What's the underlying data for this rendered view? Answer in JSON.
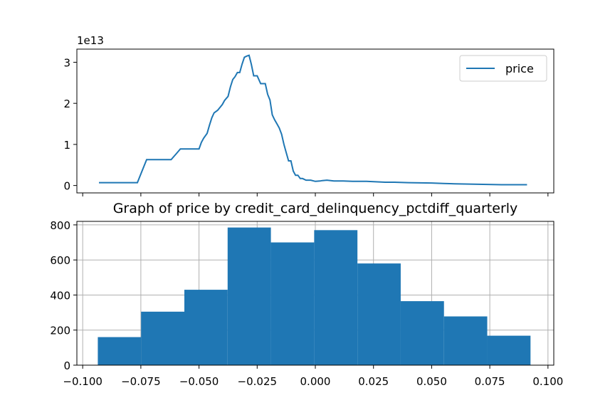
{
  "chart_data": [
    {
      "type": "line",
      "title": "",
      "xlabel": "",
      "ylabel": "",
      "offset_label": "1e13",
      "xlim": [
        -0.1025,
        0.1025
      ],
      "ylim": [
        -0.18,
        3.32
      ],
      "y_unit": "1e13",
      "x_ticks": [
        -0.1,
        -0.075,
        -0.05,
        -0.025,
        0.0,
        0.025,
        0.05,
        0.075,
        0.1
      ],
      "x_tick_labels_shown": false,
      "y_ticks": [
        0,
        1,
        2,
        3
      ],
      "y_tick_labels": [
        "0",
        "1",
        "2",
        "3"
      ],
      "grid": false,
      "legend": {
        "position": "upper right",
        "entries": [
          "price"
        ]
      },
      "series": [
        {
          "name": "price",
          "color": "#1f77b4",
          "x": [
            -0.093,
            -0.09,
            -0.085,
            -0.08,
            -0.0765,
            -0.0745,
            -0.0725,
            -0.0705,
            -0.067,
            -0.062,
            -0.0595,
            -0.058,
            -0.056,
            -0.053,
            -0.05,
            -0.049,
            -0.048,
            -0.0465,
            -0.0455,
            -0.0445,
            -0.0435,
            -0.042,
            -0.041,
            -0.04,
            -0.039,
            -0.0375,
            -0.0365,
            -0.0355,
            -0.0345,
            -0.0335,
            -0.0325,
            -0.0315,
            -0.0305,
            -0.0295,
            -0.0285,
            -0.0275,
            -0.0265,
            -0.026,
            -0.025,
            -0.0235,
            -0.0225,
            -0.0215,
            -0.0205,
            -0.0195,
            -0.0185,
            -0.0175,
            -0.0165,
            -0.0155,
            -0.0145,
            -0.0135,
            -0.0125,
            -0.0115,
            -0.0105,
            -0.0095,
            -0.0085,
            -0.0075,
            -0.0065,
            -0.0055,
            -0.004,
            -0.002,
            0.0,
            0.002,
            0.003,
            0.005,
            0.008,
            0.012,
            0.016,
            0.019,
            0.022,
            0.026,
            0.03,
            0.034,
            0.04,
            0.05,
            0.055,
            0.06,
            0.07,
            0.08,
            0.091
          ],
          "values": [
            0.07,
            0.07,
            0.07,
            0.07,
            0.07,
            0.35,
            0.63,
            0.63,
            0.63,
            0.63,
            0.79,
            0.89,
            0.89,
            0.89,
            0.89,
            1.05,
            1.15,
            1.27,
            1.47,
            1.65,
            1.77,
            1.83,
            1.9,
            1.97,
            2.07,
            2.17,
            2.4,
            2.58,
            2.65,
            2.75,
            2.75,
            2.95,
            3.12,
            3.15,
            3.17,
            2.95,
            2.67,
            2.67,
            2.67,
            2.48,
            2.48,
            2.48,
            2.22,
            2.08,
            1.72,
            1.6,
            1.5,
            1.4,
            1.25,
            1.0,
            0.8,
            0.6,
            0.6,
            0.35,
            0.25,
            0.25,
            0.17,
            0.17,
            0.13,
            0.13,
            0.1,
            0.11,
            0.12,
            0.13,
            0.11,
            0.11,
            0.1,
            0.1,
            0.1,
            0.09,
            0.08,
            0.08,
            0.07,
            0.06,
            0.05,
            0.04,
            0.03,
            0.02,
            0.02
          ]
        }
      ]
    },
    {
      "type": "bar",
      "title": "Graph of price by credit_card_delinquency_pctdiff_quarterly",
      "xlabel": "",
      "ylabel": "",
      "xlim": [
        -0.1025,
        0.1025
      ],
      "ylim": [
        0,
        820
      ],
      "x_ticks": [
        -0.1,
        -0.075,
        -0.05,
        -0.025,
        0.0,
        0.025,
        0.05,
        0.075,
        0.1
      ],
      "x_tick_labels": [
        "−0.100",
        "−0.075",
        "−0.050",
        "−0.025",
        "0.000",
        "0.025",
        "0.050",
        "0.075",
        "0.100"
      ],
      "y_ticks": [
        0,
        200,
        400,
        600,
        800
      ],
      "y_tick_labels": [
        "0",
        "200",
        "400",
        "600",
        "800"
      ],
      "grid": true,
      "bar_color": "#1f77b4",
      "bin_edges": [
        -0.0935,
        -0.0749,
        -0.0563,
        -0.0377,
        -0.0191,
        -0.0005,
        0.0181,
        0.0367,
        0.0553,
        0.0739,
        0.0925
      ],
      "values": [
        160,
        305,
        430,
        785,
        700,
        770,
        580,
        365,
        278,
        168
      ]
    }
  ]
}
